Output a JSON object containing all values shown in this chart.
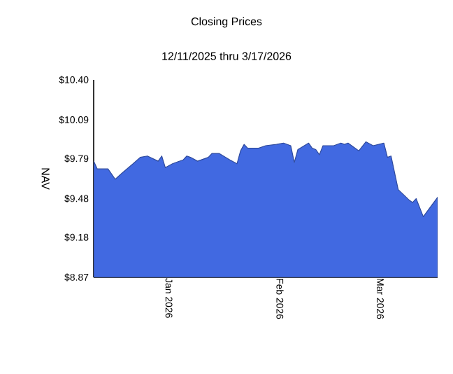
{
  "chart_data": {
    "type": "area",
    "title": "Closing Prices",
    "subtitle": "12/11/2025 thru 3/17/2026",
    "ylabel": "NAV",
    "color": "#4169e1",
    "x": [
      "2025-12-11",
      "2025-12-12",
      "2025-12-15",
      "2025-12-17",
      "2025-12-19",
      "2025-12-22",
      "2025-12-24",
      "2025-12-26",
      "2025-12-29",
      "2025-12-30",
      "2025-12-31",
      "2026-01-02",
      "2026-01-05",
      "2026-01-06",
      "2026-01-07",
      "2026-01-09",
      "2026-01-12",
      "2026-01-13",
      "2026-01-15",
      "2026-01-18",
      "2026-01-20",
      "2026-01-21",
      "2026-01-22",
      "2026-01-23",
      "2026-01-26",
      "2026-01-28",
      "2026-01-31",
      "2026-02-02",
      "2026-02-04",
      "2026-02-05",
      "2026-02-06",
      "2026-02-09",
      "2026-02-10",
      "2026-02-11",
      "2026-02-12",
      "2026-02-13",
      "2026-02-16",
      "2026-02-18",
      "2026-02-19",
      "2026-02-20",
      "2026-02-23",
      "2026-02-25",
      "2026-02-27",
      "2026-03-02",
      "2026-03-03",
      "2026-03-04",
      "2026-03-06",
      "2026-03-09",
      "2026-03-10",
      "2026-03-11",
      "2026-03-13",
      "2026-03-17"
    ],
    "values": [
      9.77,
      9.71,
      9.71,
      9.63,
      9.68,
      9.75,
      9.8,
      9.81,
      9.77,
      9.81,
      9.72,
      9.75,
      9.78,
      9.81,
      9.8,
      9.77,
      9.8,
      9.83,
      9.83,
      9.78,
      9.75,
      9.85,
      9.9,
      9.87,
      9.87,
      9.89,
      9.9,
      9.91,
      9.89,
      9.76,
      9.86,
      9.91,
      9.87,
      9.86,
      9.82,
      9.89,
      9.89,
      9.91,
      9.9,
      9.91,
      9.85,
      9.92,
      9.89,
      9.91,
      9.8,
      9.81,
      9.55,
      9.47,
      9.45,
      9.48,
      9.34,
      9.49
    ],
    "xlim": [
      "2025-12-11",
      "2026-03-17"
    ],
    "xticks": [
      {
        "value": "2026-01-01",
        "label": "Jan  2026"
      },
      {
        "value": "2026-02-01",
        "label": "Feb  2026"
      },
      {
        "value": "2026-03-01",
        "label": "Mar  2026"
      }
    ],
    "ylim": [
      8.87,
      10.4
    ],
    "yticks": [
      {
        "value": 8.87,
        "label": "$8.87"
      },
      {
        "value": 9.18,
        "label": "$9.18"
      },
      {
        "value": 9.48,
        "label": "$9.48"
      },
      {
        "value": 9.79,
        "label": "$9.79"
      },
      {
        "value": 10.09,
        "label": "$10.09"
      },
      {
        "value": 10.4,
        "label": "$10.40"
      }
    ]
  }
}
